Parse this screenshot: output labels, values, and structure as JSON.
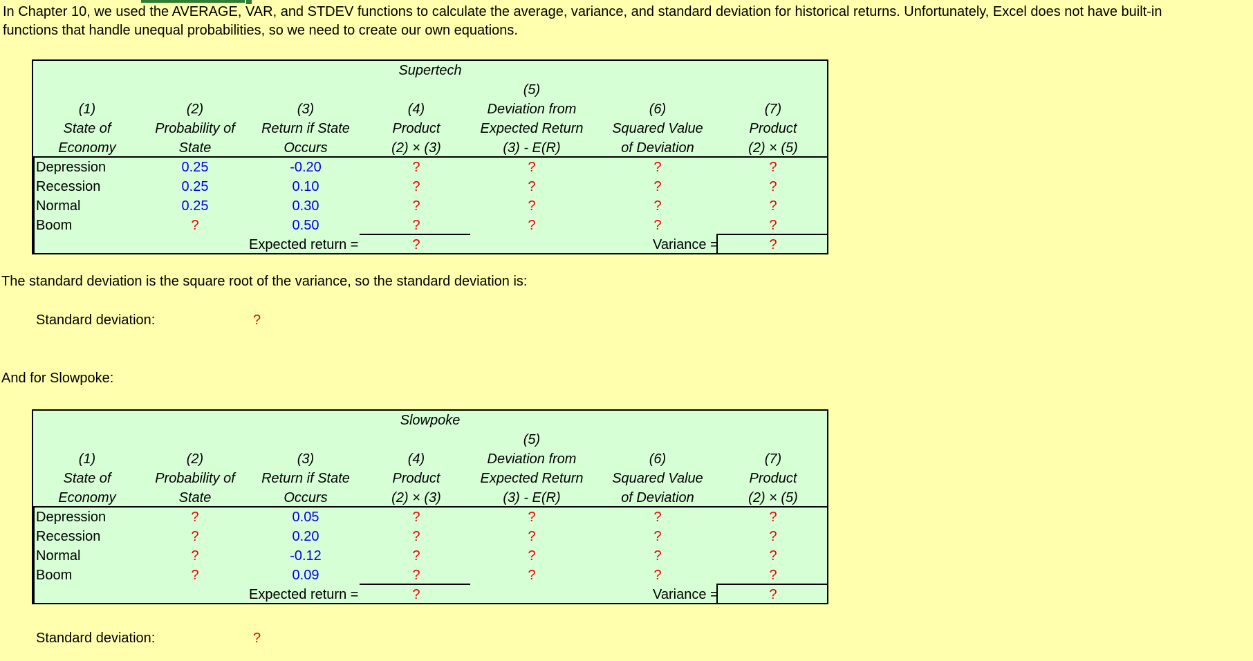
{
  "intro_text": "In Chapter 10, we used the AVERAGE, VAR, and STDEV functions to calculate the average, variance, and standard deviation for historical returns. Unfortunately, Excel does not have built-in functions that handle unequal probabilities, so we need to create our own equations.",
  "headers": {
    "c1": [
      "(1)",
      "State of",
      "Economy"
    ],
    "c2": [
      "(2)",
      "Probability of",
      "State"
    ],
    "c3": [
      "(3)",
      "Return if State",
      "Occurs"
    ],
    "c4": [
      "(4)",
      "Product",
      "(2) × (3)"
    ],
    "c5": [
      "(5)",
      "Deviation from",
      "Expected Return",
      "(3) - E(R)"
    ],
    "c6": [
      "(6)",
      "Squared Value",
      "of Deviation"
    ],
    "c7": [
      "(7)",
      "Product",
      "(2) × (5)"
    ]
  },
  "supertech": {
    "title": "Supertech",
    "rows": [
      {
        "state": "Depression",
        "prob": "0.25",
        "ret": "-0.20",
        "prod": "?",
        "dev": "?",
        "sq": "?",
        "prod2": "?"
      },
      {
        "state": "Recession",
        "prob": "0.25",
        "ret": "0.10",
        "prod": "?",
        "dev": "?",
        "sq": "?",
        "prod2": "?"
      },
      {
        "state": "Normal",
        "prob": "0.25",
        "ret": "0.30",
        "prod": "?",
        "dev": "?",
        "sq": "?",
        "prod2": "?"
      },
      {
        "state": "Boom",
        "prob": "?",
        "ret": "0.50",
        "prod": "?",
        "dev": "?",
        "sq": "?",
        "prod2": "?"
      }
    ],
    "expected_label": "Expected return =",
    "expected_value": "?",
    "variance_label": "Variance =",
    "variance_value": "?"
  },
  "sd_text": "The standard deviation is the square root of the variance, so the standard deviation is:",
  "sd1_label": "Standard deviation:",
  "sd1_value": "?",
  "slowpoke_intro": "And for Slowpoke:",
  "slowpoke": {
    "title": "Slowpoke",
    "rows": [
      {
        "state": "Depression",
        "prob": "?",
        "ret": "0.05",
        "prod": "?",
        "dev": "?",
        "sq": "?",
        "prod2": "?"
      },
      {
        "state": "Recession",
        "prob": "?",
        "ret": "0.20",
        "prod": "?",
        "dev": "?",
        "sq": "?",
        "prod2": "?"
      },
      {
        "state": "Normal",
        "prob": "?",
        "ret": "-0.12",
        "prod": "?",
        "dev": "?",
        "sq": "?",
        "prod2": "?"
      },
      {
        "state": "Boom",
        "prob": "?",
        "ret": "0.09",
        "prod": "?",
        "dev": "?",
        "sq": "?",
        "prod2": "?"
      }
    ],
    "expected_label": "Expected return =",
    "expected_value": "?",
    "variance_label": "Variance =",
    "variance_value": "?"
  },
  "sd2_label": "Standard deviation:",
  "sd2_value": "?",
  "colors": {
    "input": "#0000ee",
    "answer": "#ee0000",
    "panel": "#d6ffd6",
    "background": "#ffffae"
  }
}
